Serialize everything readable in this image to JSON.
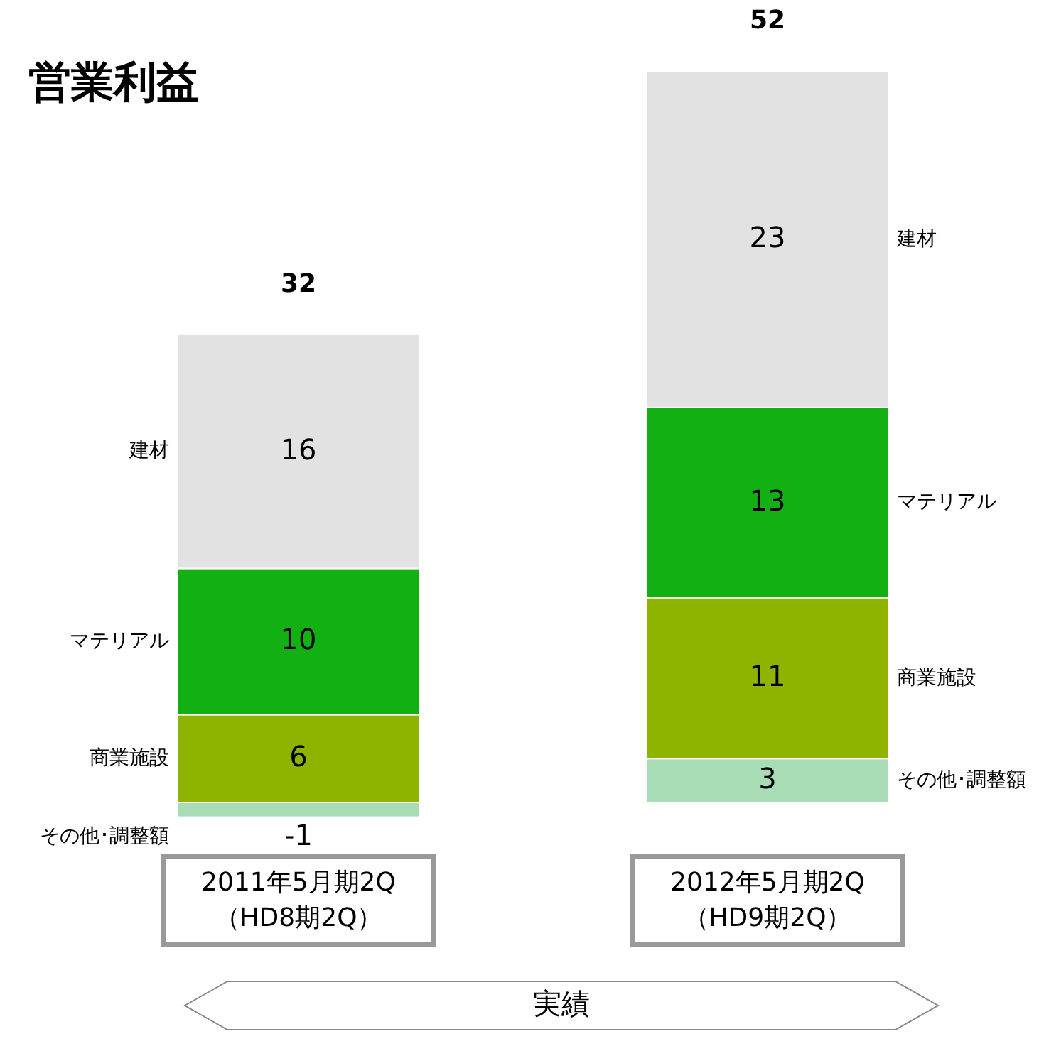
{
  "chart_data": {
    "type": "bar",
    "title": "営業利益",
    "stacked": true,
    "data_labels": true,
    "categories": [
      "2011年5月期2Q\n（HD8期2Q）",
      "2012年5月期2Q\n（HD9期2Q）"
    ],
    "series": [
      {
        "name": "その他･調整額",
        "color": "#a8dcb4",
        "values": [
          -1,
          3
        ]
      },
      {
        "name": "商業施設",
        "color": "#8fb400",
        "values": [
          6,
          11
        ]
      },
      {
        "name": "マテリアル",
        "color": "#13b013",
        "values": [
          10,
          13
        ]
      },
      {
        "name": "建材",
        "color": "#e2e2e2",
        "values": [
          16,
          23
        ]
      }
    ],
    "totals": [
      "32",
      "52"
    ],
    "annotations": [
      "実績"
    ]
  }
}
